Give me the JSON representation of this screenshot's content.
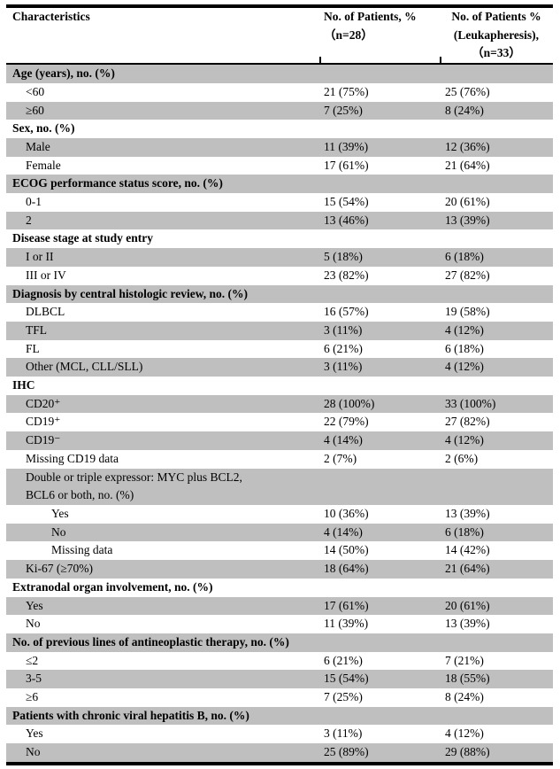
{
  "colors": {
    "shaded_row": "#bfbfbf",
    "rule": "#000000",
    "text": "#000000",
    "background": "#ffffff"
  },
  "header": {
    "col1_lines": [
      "Characteristics"
    ],
    "col2_lines": [
      "No. of Patients, %",
      "（n=28）"
    ],
    "col3_lines": [
      "No. of Patients %",
      "(Leukapheresis),",
      "（n=33）"
    ]
  },
  "rows": [
    {
      "label_lines": [
        "Age (years), no. (%)"
      ],
      "indent": 0,
      "bold": true,
      "shaded": true,
      "n28": "",
      "n33": ""
    },
    {
      "label_lines": [
        "<60"
      ],
      "indent": 1,
      "bold": false,
      "shaded": false,
      "n28": "21 (75%)",
      "n33": "25 (76%)"
    },
    {
      "label_lines": [
        "≥60"
      ],
      "indent": 1,
      "bold": false,
      "shaded": true,
      "n28": "7 (25%)",
      "n33": "8 (24%)"
    },
    {
      "label_lines": [
        "Sex, no. (%)"
      ],
      "indent": 0,
      "bold": true,
      "shaded": false,
      "n28": "",
      "n33": ""
    },
    {
      "label_lines": [
        "Male"
      ],
      "indent": 1,
      "bold": false,
      "shaded": true,
      "n28": "11 (39%)",
      "n33": "12 (36%)"
    },
    {
      "label_lines": [
        "Female"
      ],
      "indent": 1,
      "bold": false,
      "shaded": false,
      "n28": "17 (61%)",
      "n33": "21 (64%)"
    },
    {
      "label_lines": [
        "ECOG performance status score, no. (%)"
      ],
      "indent": 0,
      "bold": true,
      "shaded": true,
      "n28": "",
      "n33": ""
    },
    {
      "label_lines": [
        "0-1"
      ],
      "indent": 1,
      "bold": false,
      "shaded": false,
      "n28": "15 (54%)",
      "n33": "20 (61%)"
    },
    {
      "label_lines": [
        "2"
      ],
      "indent": 1,
      "bold": false,
      "shaded": true,
      "n28": "13 (46%)",
      "n33": "13 (39%)"
    },
    {
      "label_lines": [
        "Disease stage at study entry"
      ],
      "indent": 0,
      "bold": true,
      "shaded": false,
      "n28": "",
      "n33": ""
    },
    {
      "label_lines": [
        "I or II"
      ],
      "indent": 1,
      "bold": false,
      "shaded": true,
      "n28": "5 (18%)",
      "n33": "6 (18%)"
    },
    {
      "label_lines": [
        "III or IV"
      ],
      "indent": 1,
      "bold": false,
      "shaded": false,
      "n28": "23 (82%)",
      "n33": "27 (82%)"
    },
    {
      "label_lines": [
        "Diagnosis by central histologic review, no. (%)"
      ],
      "indent": 0,
      "bold": true,
      "shaded": true,
      "n28": "",
      "n33": ""
    },
    {
      "label_lines": [
        "DLBCL"
      ],
      "indent": 1,
      "bold": false,
      "shaded": false,
      "n28": "16 (57%)",
      "n33": "19 (58%)"
    },
    {
      "label_lines": [
        "TFL"
      ],
      "indent": 1,
      "bold": false,
      "shaded": true,
      "n28": "3 (11%)",
      "n33": "4 (12%)"
    },
    {
      "label_lines": [
        "FL"
      ],
      "indent": 1,
      "bold": false,
      "shaded": false,
      "n28": "6 (21%)",
      "n33": "6 (18%)"
    },
    {
      "label_lines": [
        "Other (MCL, CLL/SLL)"
      ],
      "indent": 1,
      "bold": false,
      "shaded": true,
      "n28": "3 (11%)",
      "n33": "4 (12%)"
    },
    {
      "label_lines": [
        "IHC"
      ],
      "indent": 0,
      "bold": true,
      "shaded": false,
      "n28": "",
      "n33": ""
    },
    {
      "label_lines": [
        "CD20⁺"
      ],
      "indent": 1,
      "bold": false,
      "shaded": true,
      "n28": "28 (100%)",
      "n33": "33 (100%)"
    },
    {
      "label_lines": [
        "CD19⁺"
      ],
      "indent": 1,
      "bold": false,
      "shaded": false,
      "n28": "22 (79%)",
      "n33": "27 (82%)"
    },
    {
      "label_lines": [
        "CD19⁻"
      ],
      "indent": 1,
      "bold": false,
      "shaded": true,
      "n28": "4 (14%)",
      "n33": "4 (12%)"
    },
    {
      "label_lines": [
        "Missing CD19 data"
      ],
      "indent": 1,
      "bold": false,
      "shaded": false,
      "n28": "2 (7%)",
      "n33": "2 (6%)"
    },
    {
      "label_lines": [
        "Double or triple expressor: MYC plus BCL2,",
        "BCL6 or both, no. (%)"
      ],
      "indent": 1,
      "bold": false,
      "shaded": true,
      "n28": "",
      "n33": ""
    },
    {
      "label_lines": [
        "Yes"
      ],
      "indent": 2,
      "bold": false,
      "shaded": false,
      "n28": "10 (36%)",
      "n33": "13 (39%)"
    },
    {
      "label_lines": [
        "No"
      ],
      "indent": 2,
      "bold": false,
      "shaded": true,
      "n28": "4 (14%)",
      "n33": "6 (18%)"
    },
    {
      "label_lines": [
        "Missing data"
      ],
      "indent": 2,
      "bold": false,
      "shaded": false,
      "n28": "14 (50%)",
      "n33": "14 (42%)"
    },
    {
      "label_lines": [
        "Ki-67 (≥70%)"
      ],
      "indent": 1,
      "bold": false,
      "shaded": true,
      "n28": "18 (64%)",
      "n33": "21 (64%)"
    },
    {
      "label_lines": [
        "Extranodal organ involvement, no. (%)"
      ],
      "indent": 0,
      "bold": true,
      "shaded": false,
      "n28": "",
      "n33": ""
    },
    {
      "label_lines": [
        "Yes"
      ],
      "indent": 1,
      "bold": false,
      "shaded": true,
      "n28": "17 (61%)",
      "n33": "20 (61%)"
    },
    {
      "label_lines": [
        "No"
      ],
      "indent": 1,
      "bold": false,
      "shaded": false,
      "n28": "11 (39%)",
      "n33": "13 (39%)"
    },
    {
      "label_lines": [
        "No. of previous lines of antineoplastic therapy, no. (%)"
      ],
      "indent": 0,
      "bold": true,
      "shaded": true,
      "n28": "",
      "n33": ""
    },
    {
      "label_lines": [
        "≤2"
      ],
      "indent": 1,
      "bold": false,
      "shaded": false,
      "n28": "6 (21%)",
      "n33": "7 (21%)"
    },
    {
      "label_lines": [
        "3-5"
      ],
      "indent": 1,
      "bold": false,
      "shaded": true,
      "n28": "15 (54%)",
      "n33": "18 (55%)"
    },
    {
      "label_lines": [
        "≥6"
      ],
      "indent": 1,
      "bold": false,
      "shaded": false,
      "n28": "7 (25%)",
      "n33": "8 (24%)"
    },
    {
      "label_lines": [
        "Patients with chronic viral hepatitis B, no. (%)"
      ],
      "indent": 0,
      "bold": true,
      "shaded": true,
      "n28": "",
      "n33": ""
    },
    {
      "label_lines": [
        "Yes"
      ],
      "indent": 1,
      "bold": false,
      "shaded": false,
      "n28": "3 (11%)",
      "n33": "4 (12%)"
    },
    {
      "label_lines": [
        "No"
      ],
      "indent": 1,
      "bold": false,
      "shaded": true,
      "n28": "25 (89%)",
      "n33": "29 (88%)"
    }
  ]
}
